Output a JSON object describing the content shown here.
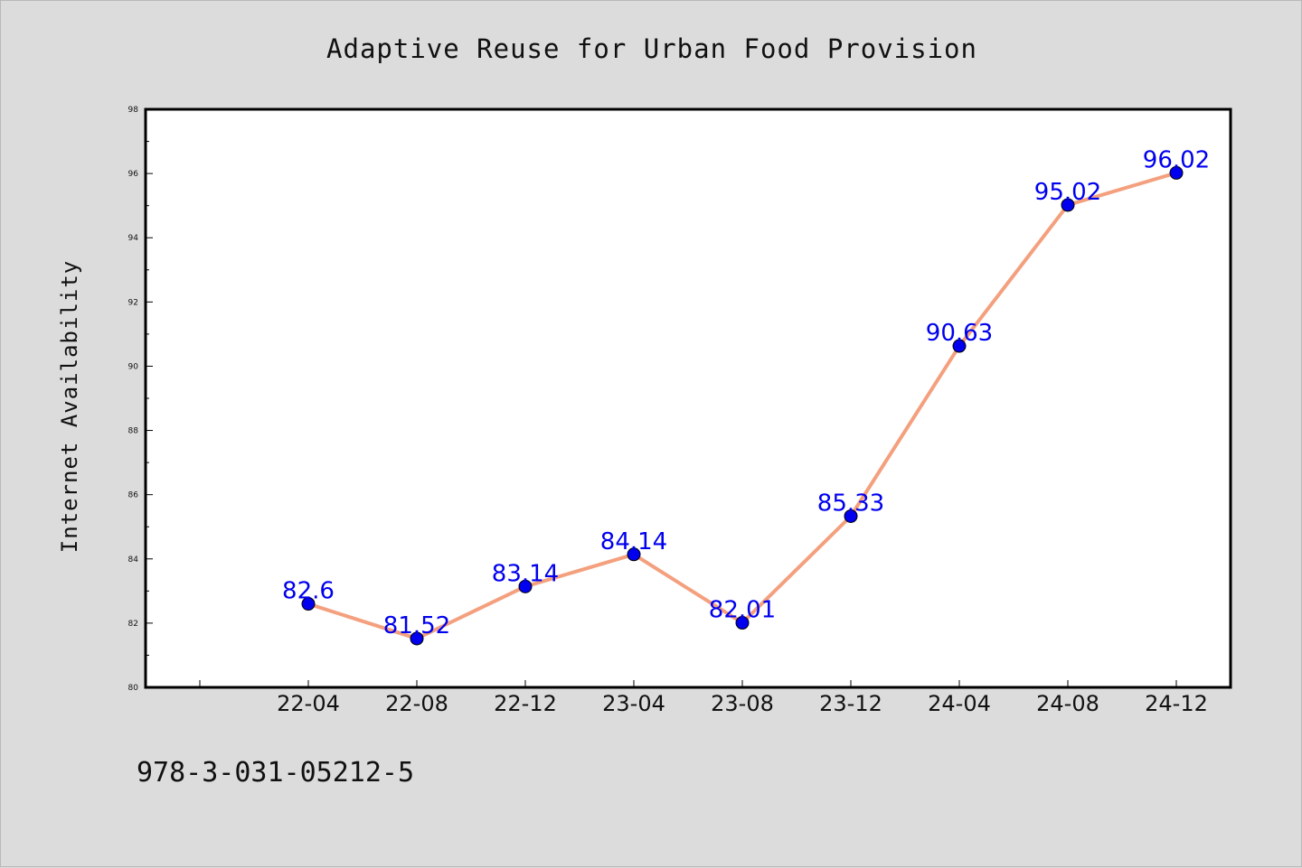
{
  "chart_data": {
    "type": "line",
    "title": "Adaptive Reuse for Urban Food Provision",
    "xlabel": "",
    "ylabel": "Internet Availability",
    "categories": [
      "22-04",
      "22-08",
      "22-12",
      "23-04",
      "23-08",
      "23-12",
      "24-04",
      "24-08",
      "24-12"
    ],
    "series": [
      {
        "values": [
          82.6,
          81.52,
          83.14,
          84.14,
          82.01,
          85.33,
          90.63,
          95.02,
          96.02
        ]
      }
    ],
    "data_labels": [
      "82.6",
      "81.52",
      "83.14",
      "84.14",
      "82.01",
      "85.33",
      "90.63",
      "95.02",
      "96.02"
    ],
    "ylim": [
      80,
      98
    ],
    "yticks": [
      80,
      82,
      84,
      86,
      88,
      90,
      92,
      94,
      96,
      98
    ],
    "grid": false,
    "legend": "none",
    "colors": {
      "line": "#f4a07e",
      "marker": "#0000ee",
      "marker_edge": "#000000",
      "label": "#0000ee",
      "figure_bg": "#dcdcdc",
      "plot_bg": "#ffffff"
    }
  },
  "footer": {
    "isbn": "978-3-031-05212-5"
  }
}
